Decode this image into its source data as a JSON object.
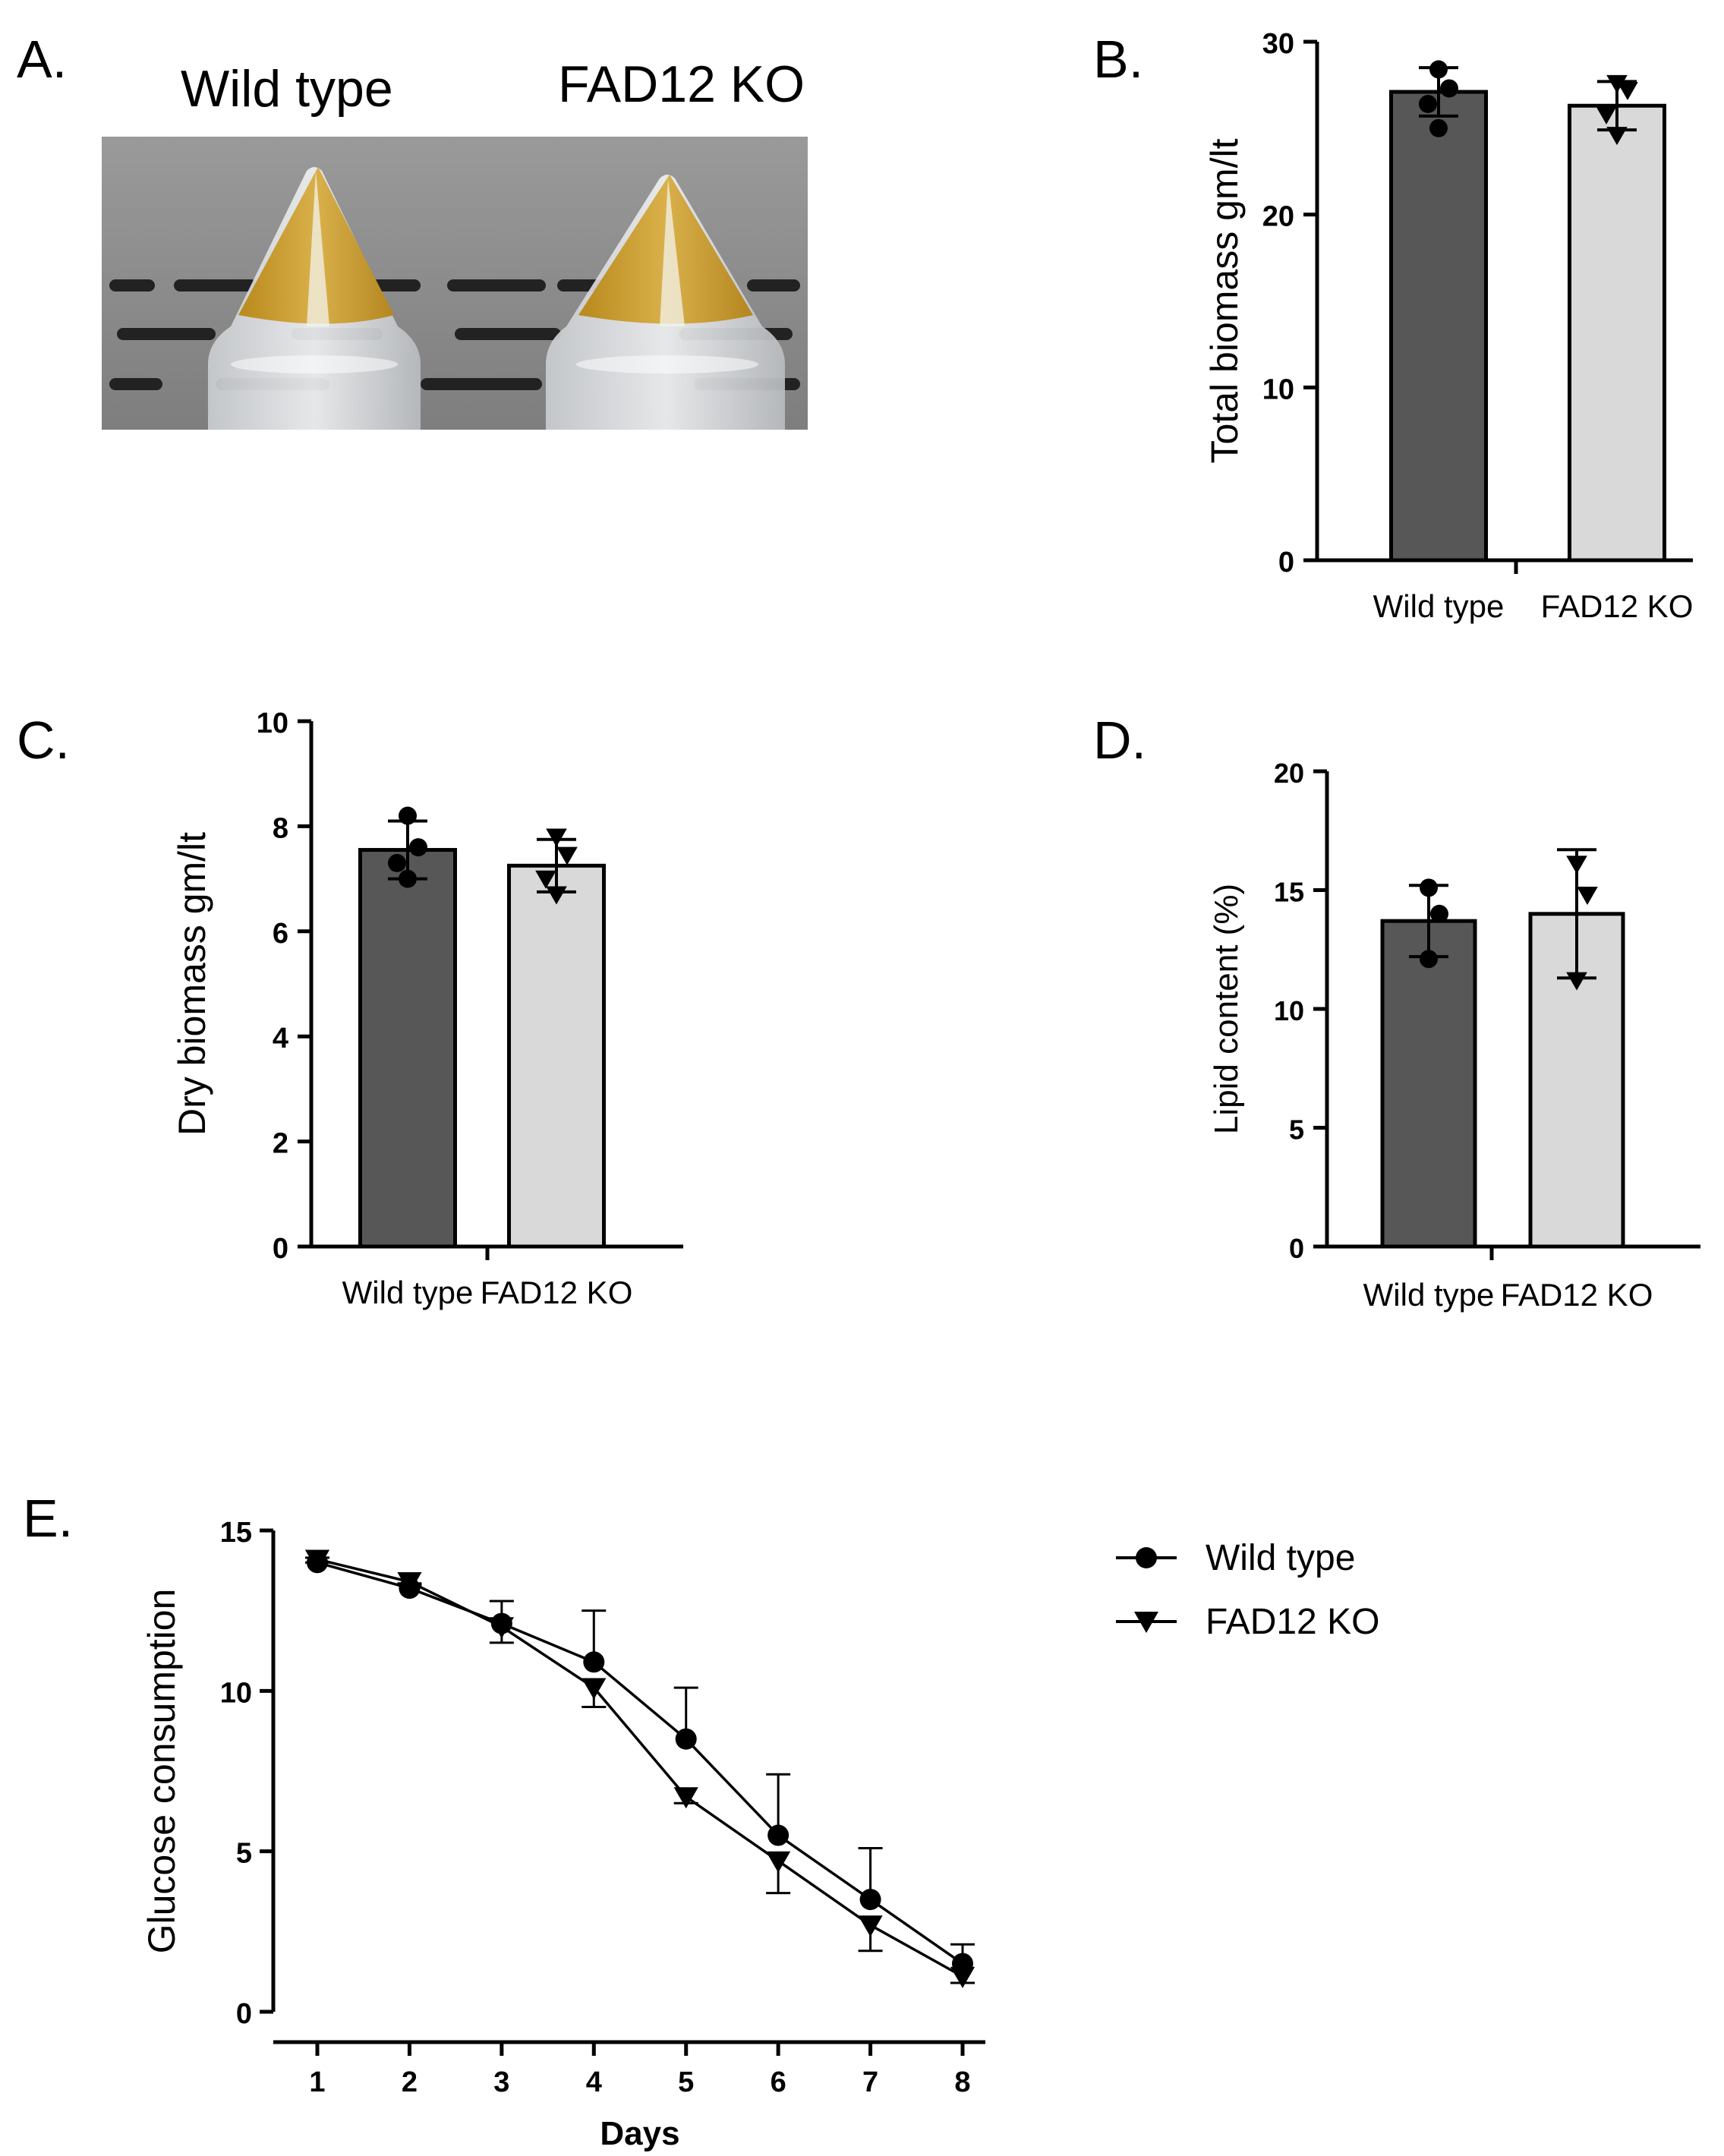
{
  "panels": {
    "a": {
      "letter": "A.",
      "labels": [
        "Wild type",
        "FAD12 KO"
      ]
    },
    "b": {
      "letter": "B."
    },
    "c": {
      "letter": "C."
    },
    "d": {
      "letter": "D."
    },
    "e": {
      "letter": "E."
    }
  },
  "photo": {
    "bg": "#8f8f8f",
    "medium_color": "#c9a22e"
  },
  "colors": {
    "wild_type_bar": "#575757",
    "fad12_bar": "#d9d9d9",
    "line": "#000000"
  },
  "chart_data": [
    {
      "panel": "B",
      "type": "bar",
      "ylabel": "Total biomass gm/lt",
      "categories": [
        "Wild type",
        "FAD12 KO"
      ],
      "values": [
        27.1,
        26.3
      ],
      "errors": [
        1.4,
        1.4
      ],
      "points": [
        [
          28.4,
          27.3,
          26.4,
          25.0
        ],
        [
          27.6,
          27.2,
          25.8,
          24.6
        ]
      ],
      "markers": [
        "circle",
        "triangle-down"
      ],
      "ylim": [
        0,
        30
      ],
      "yticks": [
        0,
        10,
        20,
        30
      ]
    },
    {
      "panel": "C",
      "type": "bar",
      "ylabel": "Dry biomass gm/lt",
      "categories": [
        "Wild type",
        "FAD12 KO"
      ],
      "values": [
        7.55,
        7.25
      ],
      "errors": [
        0.55,
        0.5
      ],
      "points": [
        [
          8.2,
          7.6,
          7.3,
          7.0
        ],
        [
          7.8,
          7.45,
          7.0,
          6.7
        ]
      ],
      "markers": [
        "circle",
        "triangle-down"
      ],
      "ylim": [
        0,
        10
      ],
      "yticks": [
        0,
        2,
        4,
        6,
        8,
        10
      ]
    },
    {
      "panel": "D",
      "type": "bar",
      "ylabel": "Lipid content (%)",
      "categories": [
        "Wild type",
        "FAD12 KO"
      ],
      "values": [
        13.7,
        14.0
      ],
      "errors": [
        1.5,
        2.7
      ],
      "points": [
        [
          15.1,
          14.0,
          12.1
        ],
        [
          16.1,
          14.8,
          11.2
        ]
      ],
      "markers": [
        "circle",
        "triangle-down"
      ],
      "ylim": [
        0,
        20
      ],
      "yticks": [
        0,
        5,
        10,
        15,
        20
      ]
    },
    {
      "panel": "E",
      "type": "line",
      "ylabel": "Glucose consumption",
      "xlabel": "Days",
      "x": [
        1,
        2,
        3,
        4,
        5,
        6,
        7,
        8
      ],
      "xlim": [
        1,
        8
      ],
      "ylim": [
        0,
        15
      ],
      "xticks": [
        1,
        2,
        3,
        4,
        5,
        6,
        7,
        8
      ],
      "yticks": [
        0,
        5,
        10,
        15
      ],
      "legend_position": "right",
      "series": [
        {
          "name": "Wild type",
          "marker": "circle",
          "values": [
            14.0,
            13.2,
            12.1,
            10.9,
            8.5,
            5.5,
            3.5,
            1.5
          ],
          "errors": [
            0.15,
            0.15,
            0.7,
            1.6,
            1.6,
            1.9,
            1.6,
            0.6
          ]
        },
        {
          "name": "FAD12 KO",
          "marker": "triangle-down",
          "values": [
            14.1,
            13.4,
            12.0,
            10.1,
            6.7,
            4.7,
            2.7,
            1.1
          ],
          "errors": [
            0.1,
            0.1,
            0.5,
            0.6,
            0.2,
            1.0,
            0.8,
            0.2
          ]
        }
      ]
    }
  ]
}
